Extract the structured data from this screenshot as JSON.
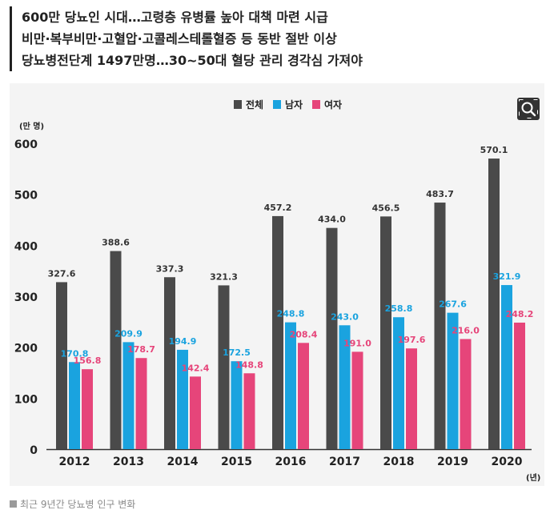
{
  "headline": {
    "lines": [
      "600만 당뇨인 시대…고령층 유병률 높아 대책 마련 시급",
      "비만·복부비만·고혈압·고콜레스테롤혈증 등 동반 절반 이상",
      "당뇨병전단계 1497만명…30~50대 혈당 관리 경각심 가져야"
    ]
  },
  "chart_data": {
    "type": "bar",
    "title": "",
    "ylabel": "(만 명)",
    "xlabel": "(년)",
    "ylim": [
      0,
      600
    ],
    "yticks": [
      0,
      100,
      200,
      300,
      400,
      500,
      600
    ],
    "categories": [
      "2012",
      "2013",
      "2014",
      "2015",
      "2016",
      "2017",
      "2018",
      "2019",
      "2020"
    ],
    "series": [
      {
        "name": "전체",
        "color": "#4a4a4a",
        "values": [
          327.6,
          388.6,
          337.3,
          321.3,
          457.2,
          434.0,
          456.5,
          483.7,
          570.1
        ]
      },
      {
        "name": "남자",
        "color": "#1aa3df",
        "values": [
          170.8,
          209.9,
          194.9,
          172.5,
          248.8,
          243.0,
          258.8,
          267.6,
          321.9
        ]
      },
      {
        "name": "여자",
        "color": "#e6457a",
        "values": [
          156.8,
          178.7,
          142.4,
          148.8,
          208.4,
          191.0,
          197.6,
          216.0,
          248.2
        ]
      }
    ],
    "legend_position": "top-right",
    "grid": false
  },
  "caption": {
    "text": "최근 9년간 당뇨병 인구 변화",
    "color": "#9a9a9a"
  },
  "zoom_icon": "magnifier-icon"
}
